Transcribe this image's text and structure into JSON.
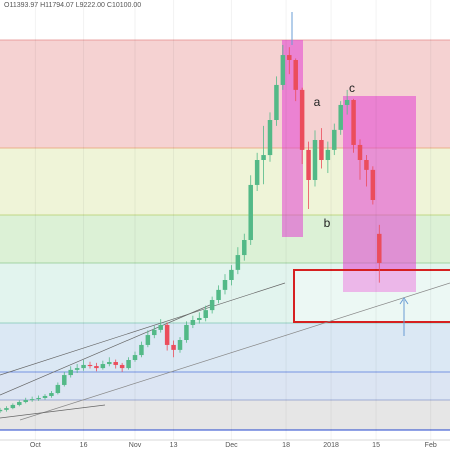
{
  "chart_data": {
    "type": "candlestick",
    "header": "O11393.97 H11794.07 L9222.00 C10100.00",
    "annotations": [
      "a",
      "b",
      "c"
    ],
    "up_color": "#53b987",
    "down_color": "#eb4d5c",
    "xlim": [
      0,
      140
    ],
    "ylim": [
      2220,
      21800
    ],
    "xticks": [
      {
        "value": 11,
        "label": "Oct"
      },
      {
        "value": 26,
        "label": "16"
      },
      {
        "value": 42,
        "label": "Nov"
      },
      {
        "value": 54,
        "label": "13"
      },
      {
        "value": 72,
        "label": "Dec"
      },
      {
        "value": 89,
        "label": "18"
      },
      {
        "value": 103,
        "label": "2018"
      },
      {
        "value": 117,
        "label": "15"
      },
      {
        "value": 134,
        "label": "Feb"
      }
    ],
    "x": [
      0,
      2,
      4,
      6,
      8,
      10,
      12,
      14,
      16,
      18,
      20,
      22,
      24,
      26,
      28,
      30,
      32,
      34,
      36,
      38,
      40,
      42,
      44,
      46,
      48,
      50,
      52,
      54,
      56,
      58,
      60,
      62,
      64,
      66,
      68,
      70,
      72,
      74,
      76,
      78,
      80,
      82,
      84,
      86,
      88,
      90,
      92,
      94,
      96,
      98,
      100,
      102,
      104,
      106,
      108,
      110,
      112,
      114,
      116,
      118
    ],
    "open": [
      3500,
      3560,
      3640,
      3780,
      3910,
      4000,
      4040,
      4090,
      4180,
      4310,
      4670,
      5110,
      5340,
      5420,
      5560,
      5510,
      5420,
      5600,
      5690,
      5560,
      5420,
      5780,
      6000,
      6450,
      6890,
      7120,
      7340,
      6450,
      6230,
      6670,
      7340,
      7560,
      7650,
      8000,
      8450,
      8900,
      9340,
      9790,
      10450,
      11120,
      13570,
      14680,
      14900,
      16460,
      18020,
      19350,
      19130,
      17800,
      15130,
      13790,
      15570,
      14680,
      15130,
      16020,
      17130,
      17350,
      15350,
      14680,
      14240,
      11393.97
    ],
    "high": [
      3650,
      3720,
      3850,
      3990,
      4100,
      4150,
      4200,
      4260,
      4400,
      4780,
      5250,
      5500,
      5600,
      5780,
      5700,
      5650,
      5750,
      5900,
      5800,
      5650,
      5900,
      6150,
      6600,
      7100,
      7300,
      7600,
      7450,
      6650,
      6800,
      7500,
      7750,
      7900,
      8200,
      8600,
      9100,
      9600,
      10000,
      10800,
      11400,
      14000,
      15000,
      16200,
      16800,
      18400,
      19800,
      19700,
      19200,
      17900,
      15500,
      16000,
      16100,
      15500,
      16300,
      17300,
      17800,
      17400,
      15600,
      14900,
      14400,
      11794.07
    ],
    "low": [
      3420,
      3480,
      3590,
      3720,
      3850,
      3920,
      3960,
      4010,
      4100,
      4250,
      4600,
      5000,
      5200,
      5300,
      5400,
      5280,
      5350,
      5500,
      5400,
      5250,
      5350,
      5700,
      5900,
      6350,
      6750,
      7000,
      6200,
      5900,
      6100,
      6550,
      7200,
      7400,
      7500,
      7850,
      8300,
      8700,
      9100,
      9600,
      10200,
      10900,
      13300,
      13600,
      14600,
      16200,
      17800,
      18500,
      17300,
      14500,
      12500,
      13500,
      14300,
      14100,
      14900,
      15800,
      16700,
      15000,
      13800,
      13500,
      12700,
      9222
    ],
    "close": [
      3560,
      3640,
      3780,
      3910,
      4000,
      4040,
      4090,
      4180,
      4310,
      4670,
      5110,
      5340,
      5420,
      5560,
      5510,
      5420,
      5600,
      5690,
      5560,
      5420,
      5780,
      6000,
      6450,
      6890,
      7120,
      7340,
      6450,
      6230,
      6670,
      7340,
      7560,
      7650,
      8000,
      8450,
      8900,
      9340,
      9790,
      10450,
      11120,
      13570,
      14680,
      14900,
      16460,
      18020,
      19350,
      19130,
      17800,
      15130,
      13790,
      15570,
      14680,
      15130,
      16020,
      17130,
      17350,
      15350,
      14680,
      14240,
      12900,
      10100
    ]
  }
}
